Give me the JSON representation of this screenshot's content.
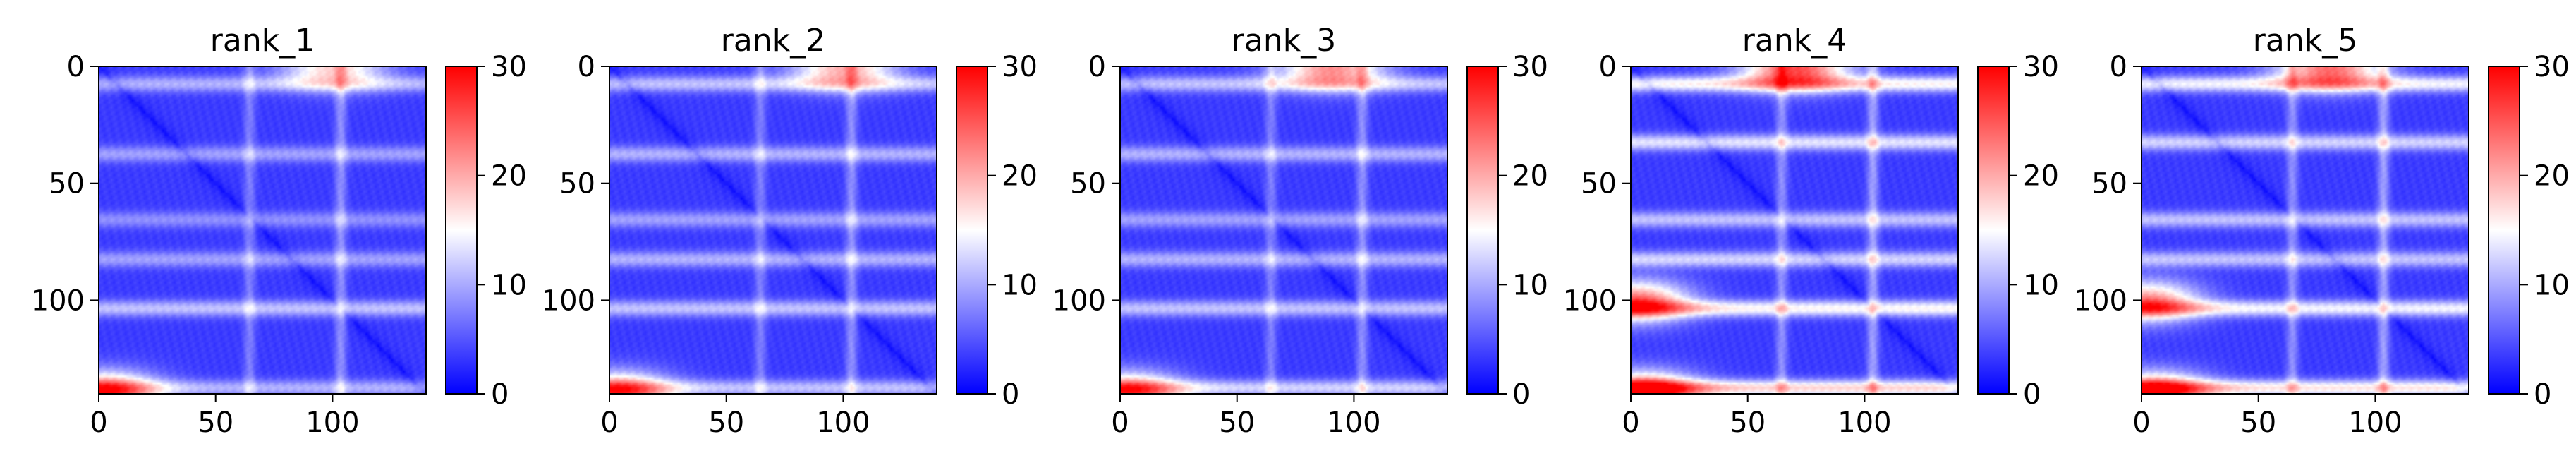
{
  "figure": {
    "colors": {
      "cmap_low": "#0000ff",
      "cmap_mid": "#ffffff",
      "cmap_high": "#ff0000",
      "axis": "#000000"
    }
  },
  "chart_data": [
    {
      "type": "heatmap",
      "title": "rank_1",
      "matrix_size": 140,
      "xlim": [
        0,
        140
      ],
      "ylim": [
        140,
        0
      ],
      "x_ticks": [
        0,
        50,
        100
      ],
      "y_ticks": [
        0,
        50,
        100
      ],
      "colorbar": {
        "min": 0,
        "max": 30,
        "ticks": [
          0,
          10,
          20,
          30
        ],
        "cmap": "bwr"
      },
      "pattern": {
        "diagonal": 1,
        "horizontal_bands": [
          {
            "y": 7,
            "value": 11
          },
          {
            "y": 37,
            "value": 10
          },
          {
            "y": 65,
            "value": 9
          },
          {
            "y": 82,
            "value": 10
          },
          {
            "y": 103,
            "value": 12
          },
          {
            "y": 137,
            "value": 11
          }
        ],
        "vertical_bands": [
          {
            "x": 64,
            "value": 8
          },
          {
            "x": 103,
            "value": 9
          }
        ],
        "hotspots": [
          {
            "x": 100,
            "y": 0,
            "value": 18
          },
          {
            "x": 2,
            "y": 139,
            "value": 26
          }
        ]
      }
    },
    {
      "type": "heatmap",
      "title": "rank_2",
      "matrix_size": 140,
      "xlim": [
        0,
        140
      ],
      "ylim": [
        140,
        0
      ],
      "x_ticks": [
        0,
        50,
        100
      ],
      "y_ticks": [
        0,
        50,
        100
      ],
      "colorbar": {
        "min": 0,
        "max": 30,
        "ticks": [
          0,
          10,
          20,
          30
        ],
        "cmap": "bwr"
      },
      "pattern": {
        "diagonal": 1,
        "horizontal_bands": [
          {
            "y": 7,
            "value": 12
          },
          {
            "y": 37,
            "value": 11
          },
          {
            "y": 65,
            "value": 10
          },
          {
            "y": 82,
            "value": 11
          },
          {
            "y": 103,
            "value": 12
          },
          {
            "y": 137,
            "value": 12
          }
        ],
        "vertical_bands": [
          {
            "x": 64,
            "value": 8
          },
          {
            "x": 103,
            "value": 9
          }
        ],
        "hotspots": [
          {
            "x": 100,
            "y": 0,
            "value": 20
          },
          {
            "x": 3,
            "y": 139,
            "value": 24
          }
        ]
      }
    },
    {
      "type": "heatmap",
      "title": "rank_3",
      "matrix_size": 140,
      "xlim": [
        0,
        140
      ],
      "ylim": [
        140,
        0
      ],
      "x_ticks": [
        0,
        50,
        100
      ],
      "y_ticks": [
        0,
        50,
        100
      ],
      "colorbar": {
        "min": 0,
        "max": 30,
        "ticks": [
          0,
          10,
          20,
          30
        ],
        "cmap": "bwr"
      },
      "pattern": {
        "diagonal": 1,
        "horizontal_bands": [
          {
            "y": 7,
            "value": 12
          },
          {
            "y": 37,
            "value": 11
          },
          {
            "y": 65,
            "value": 10
          },
          {
            "y": 82,
            "value": 11
          },
          {
            "y": 103,
            "value": 12
          },
          {
            "y": 137,
            "value": 13
          }
        ],
        "vertical_bands": [
          {
            "x": 64,
            "value": 8
          },
          {
            "x": 103,
            "value": 9
          }
        ],
        "hotspots": [
          {
            "x": 90,
            "y": 0,
            "value": 22
          },
          {
            "x": 3,
            "y": 139,
            "value": 23
          }
        ]
      }
    },
    {
      "type": "heatmap",
      "title": "rank_4",
      "matrix_size": 140,
      "xlim": [
        0,
        140
      ],
      "ylim": [
        140,
        0
      ],
      "x_ticks": [
        0,
        50,
        100
      ],
      "y_ticks": [
        0,
        50,
        100
      ],
      "colorbar": {
        "min": 0,
        "max": 30,
        "ticks": [
          0,
          10,
          20,
          30
        ],
        "cmap": "bwr"
      },
      "pattern": {
        "diagonal": 1,
        "horizontal_bands": [
          {
            "y": 7,
            "value": 16
          },
          {
            "y": 32,
            "value": 14
          },
          {
            "y": 65,
            "value": 12
          },
          {
            "y": 82,
            "value": 13
          },
          {
            "y": 103,
            "value": 16
          },
          {
            "y": 137,
            "value": 18
          }
        ],
        "vertical_bands": [
          {
            "x": 64,
            "value": 9
          },
          {
            "x": 103,
            "value": 10
          }
        ],
        "hotspots": [
          {
            "x": 70,
            "y": 0,
            "value": 26
          },
          {
            "x": 2,
            "y": 100,
            "value": 24
          },
          {
            "x": 5,
            "y": 139,
            "value": 27
          }
        ]
      }
    },
    {
      "type": "heatmap",
      "title": "rank_5",
      "matrix_size": 140,
      "xlim": [
        0,
        140
      ],
      "ylim": [
        140,
        0
      ],
      "x_ticks": [
        0,
        50,
        100
      ],
      "y_ticks": [
        0,
        50,
        100
      ],
      "colorbar": {
        "min": 0,
        "max": 30,
        "ticks": [
          0,
          10,
          20,
          30
        ],
        "cmap": "bwr"
      },
      "pattern": {
        "diagonal": 1,
        "horizontal_bands": [
          {
            "y": 7,
            "value": 15
          },
          {
            "y": 32,
            "value": 13
          },
          {
            "y": 65,
            "value": 12
          },
          {
            "y": 82,
            "value": 12
          },
          {
            "y": 103,
            "value": 15
          },
          {
            "y": 137,
            "value": 17
          }
        ],
        "vertical_bands": [
          {
            "x": 64,
            "value": 9
          },
          {
            "x": 103,
            "value": 10
          }
        ],
        "hotspots": [
          {
            "x": 80,
            "y": 0,
            "value": 24
          },
          {
            "x": 2,
            "y": 100,
            "value": 22
          },
          {
            "x": 5,
            "y": 139,
            "value": 25
          }
        ]
      }
    }
  ]
}
